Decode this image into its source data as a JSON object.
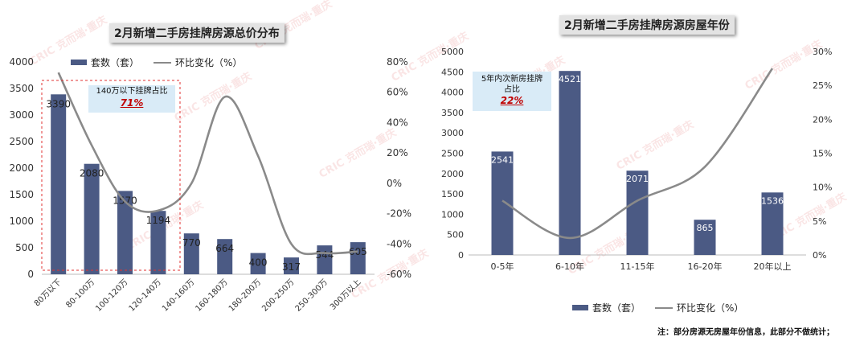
{
  "footnote": "注：部分房源无房屋年份信息，此部分不做统计；",
  "watermark": "CRIC 克而瑞·重庆",
  "colors": {
    "bar": "#4b5a84",
    "line": "#8a8a8a",
    "callout_bg": "#d9ebf7",
    "callout_pct": "#c00000",
    "dashed_box": "#e03030"
  },
  "left": {
    "title": "2月新增二手房挂牌房源总价分布",
    "legend": {
      "bar": "套数（套）",
      "line": "环比变化（%）"
    },
    "callout": {
      "text": "140万以下挂牌占比",
      "pct": "71%"
    }
  },
  "right": {
    "title": "2月新增二手房挂牌房源房屋年份",
    "legend": {
      "bar": "套数（套）",
      "line": "环比变化（%）"
    },
    "callout": {
      "text1": "5年内次新房挂牌",
      "text2": "占比",
      "pct": "22%"
    }
  },
  "chart_data": [
    {
      "type": "bar",
      "title": "2月新增二手房挂牌房源总价分布",
      "categories": [
        "80万以下",
        "80-100万",
        "100-120万",
        "120-140万",
        "140-160万",
        "160-180万",
        "180-200万",
        "200-250万",
        "250-300万",
        "300万以上"
      ],
      "series": [
        {
          "name": "套数（套）",
          "type": "bar",
          "axis": "left",
          "values": [
            3390,
            2080,
            1570,
            1194,
            770,
            664,
            400,
            317,
            544,
            605
          ],
          "labels": [
            "3390",
            "2080",
            "1570",
            "1194",
            "770",
            "664",
            "400",
            "317",
            "544",
            "605"
          ]
        },
        {
          "name": "环比变化（%）",
          "type": "line",
          "axis": "right",
          "values": [
            73,
            25,
            -12,
            -18,
            0,
            57,
            18,
            -40,
            -46,
            -45
          ]
        }
      ],
      "ylim": [
        0,
        4000
      ],
      "yticks": [
        "0",
        "500",
        "1000",
        "1500",
        "2000",
        "2500",
        "3000",
        "3500",
        "4000"
      ],
      "y2lim": [
        -60,
        80
      ],
      "y2ticks": [
        "-60%",
        "-40%",
        "-20%",
        "0%",
        "20%",
        "40%",
        "60%",
        "80%"
      ],
      "legend_position": "top"
    },
    {
      "type": "bar",
      "title": "2月新增二手房挂牌房源房屋年份",
      "categories": [
        "0-5年",
        "6-10年",
        "11-15年",
        "16-20年",
        "20年以上"
      ],
      "series": [
        {
          "name": "套数（套）",
          "type": "bar",
          "axis": "left",
          "values": [
            2541,
            4521,
            2071,
            865,
            1536
          ],
          "labels": [
            "2541",
            "4521",
            "2071",
            "865",
            "1536"
          ]
        },
        {
          "name": "环比变化（%）",
          "type": "line",
          "axis": "right",
          "values": [
            8,
            2.5,
            8,
            13,
            27.5
          ]
        }
      ],
      "ylim": [
        0,
        5000
      ],
      "yticks": [
        "0",
        "500",
        "1000",
        "1500",
        "2000",
        "2500",
        "3000",
        "3500",
        "4000",
        "4500",
        "5000"
      ],
      "y2lim": [
        0,
        30
      ],
      "y2ticks": [
        "0%",
        "5%",
        "10%",
        "15%",
        "20%",
        "25%",
        "30%"
      ],
      "legend_position": "bottom"
    }
  ]
}
